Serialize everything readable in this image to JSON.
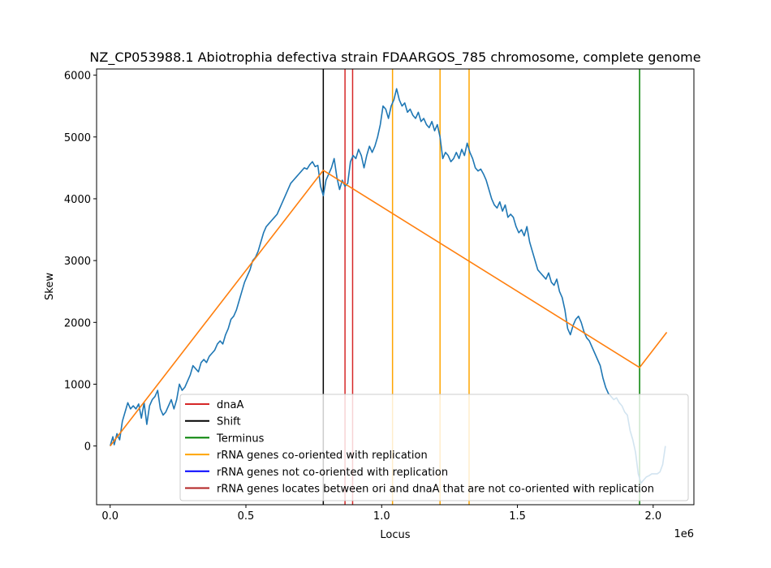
{
  "chart_data": {
    "type": "line",
    "title": "NZ_CP053988.1 Abiotrophia defectiva strain FDAARGOS_785 chromosome, complete genome",
    "xlabel": "Locus",
    "ylabel": "Skew",
    "x_offset_label": "1e6",
    "xlim": [
      -50000,
      2150000
    ],
    "ylim": [
      -950,
      6100
    ],
    "x_ticks": [
      0,
      500000,
      1000000,
      1500000,
      2000000
    ],
    "x_tick_labels": [
      "0.0",
      "0.5",
      "1.0",
      "1.5",
      "2.0"
    ],
    "y_ticks": [
      0,
      1000,
      2000,
      3000,
      4000,
      5000,
      6000
    ],
    "y_tick_labels": [
      "0",
      "1000",
      "2000",
      "3000",
      "4000",
      "5000",
      "6000"
    ],
    "grid": false,
    "legend_position": "lower right",
    "colors": {
      "skew": "#1f77b4",
      "model": "#ff7f0e",
      "dnaA": "#d62728",
      "shift": "#000000",
      "terminus": "#008000",
      "rrna_co": "#ffa500",
      "rrna_not_co": "#0000ff",
      "rrna_between": "#b22222"
    },
    "series": [
      {
        "name": "skew",
        "x": [
          0,
          10000,
          15000,
          25000,
          35000,
          45000,
          55000,
          65000,
          75000,
          85000,
          95000,
          105000,
          115000,
          125000,
          135000,
          145000,
          155000,
          165000,
          175000,
          185000,
          195000,
          205000,
          215000,
          225000,
          235000,
          245000,
          255000,
          265000,
          275000,
          285000,
          295000,
          305000,
          315000,
          325000,
          335000,
          345000,
          355000,
          365000,
          375000,
          385000,
          395000,
          405000,
          415000,
          425000,
          435000,
          445000,
          455000,
          465000,
          475000,
          485000,
          495000,
          505000,
          515000,
          525000,
          535000,
          545000,
          555000,
          565000,
          575000,
          585000,
          595000,
          605000,
          615000,
          625000,
          635000,
          645000,
          655000,
          665000,
          675000,
          685000,
          695000,
          705000,
          715000,
          725000,
          735000,
          745000,
          755000,
          765000,
          775000,
          785000,
          795000,
          805000,
          815000,
          825000,
          835000,
          845000,
          855000,
          865000,
          875000,
          885000,
          895000,
          905000,
          915000,
          925000,
          935000,
          945000,
          955000,
          965000,
          975000,
          985000,
          995000,
          1005000,
          1015000,
          1025000,
          1035000,
          1045000,
          1055000,
          1065000,
          1075000,
          1085000,
          1095000,
          1105000,
          1115000,
          1125000,
          1135000,
          1145000,
          1155000,
          1165000,
          1175000,
          1185000,
          1195000,
          1205000,
          1215000,
          1225000,
          1235000,
          1245000,
          1255000,
          1265000,
          1275000,
          1285000,
          1295000,
          1305000,
          1315000,
          1325000,
          1335000,
          1345000,
          1355000,
          1365000,
          1375000,
          1385000,
          1395000,
          1405000,
          1415000,
          1425000,
          1435000,
          1445000,
          1455000,
          1465000,
          1475000,
          1485000,
          1495000,
          1505000,
          1515000,
          1525000,
          1535000,
          1545000,
          1555000,
          1565000,
          1575000,
          1585000,
          1595000,
          1605000,
          1615000,
          1625000,
          1635000,
          1645000,
          1655000,
          1665000,
          1675000,
          1685000,
          1695000,
          1705000,
          1715000,
          1725000,
          1735000,
          1745000,
          1755000,
          1765000,
          1775000,
          1785000,
          1795000,
          1805000,
          1815000,
          1825000,
          1835000,
          1845000,
          1855000,
          1865000,
          1875000,
          1885000,
          1895000,
          1905000,
          1915000,
          1925000,
          1935000,
          1945000,
          1955000,
          1965000,
          1975000,
          1985000,
          1995000,
          2005000,
          2015000,
          2025000,
          2035000,
          2045000
        ],
        "y": [
          0,
          150,
          20,
          200,
          100,
          400,
          550,
          700,
          600,
          650,
          600,
          680,
          450,
          700,
          350,
          650,
          750,
          800,
          900,
          600,
          500,
          550,
          650,
          750,
          600,
          750,
          1000,
          900,
          950,
          1050,
          1150,
          1300,
          1250,
          1200,
          1350,
          1400,
          1350,
          1450,
          1500,
          1550,
          1650,
          1700,
          1650,
          1800,
          1900,
          2050,
          2100,
          2200,
          2350,
          2500,
          2650,
          2750,
          2850,
          3000,
          3050,
          3150,
          3300,
          3450,
          3550,
          3600,
          3650,
          3700,
          3750,
          3850,
          3950,
          4050,
          4150,
          4250,
          4300,
          4350,
          4400,
          4450,
          4500,
          4480,
          4550,
          4600,
          4520,
          4540,
          4200,
          4050,
          4300,
          4400,
          4500,
          4650,
          4350,
          4150,
          4300,
          4200,
          4250,
          4600,
          4700,
          4650,
          4800,
          4700,
          4500,
          4700,
          4850,
          4750,
          4850,
          5000,
          5200,
          5500,
          5450,
          5300,
          5500,
          5600,
          5780,
          5600,
          5500,
          5550,
          5400,
          5450,
          5350,
          5300,
          5400,
          5250,
          5300,
          5200,
          5150,
          5250,
          5100,
          5200,
          5000,
          4650,
          4750,
          4700,
          4600,
          4650,
          4750,
          4650,
          4800,
          4700,
          4900,
          4750,
          4650,
          4500,
          4450,
          4480,
          4400,
          4300,
          4150,
          4000,
          3900,
          3850,
          3950,
          3800,
          3900,
          3700,
          3750,
          3700,
          3550,
          3450,
          3500,
          3400,
          3550,
          3300,
          3150,
          3000,
          2850,
          2800,
          2750,
          2700,
          2800,
          2650,
          2600,
          2700,
          2500,
          2400,
          2200,
          1900,
          1800,
          1950,
          2050,
          2100,
          2000,
          1850,
          1750,
          1700,
          1600,
          1500,
          1400,
          1300,
          1100,
          950,
          850,
          800,
          750,
          780,
          700,
          650,
          550,
          500,
          250,
          100,
          -100,
          -450,
          -600,
          -550,
          -500,
          -480,
          -450,
          -450,
          -450,
          -420,
          -300,
          0
        ]
      },
      {
        "name": "model",
        "x": [
          0,
          785000,
          1950000,
          2050000
        ],
        "y": [
          0,
          4460,
          1270,
          1840
        ]
      }
    ],
    "vlines": [
      {
        "name": "dnaA",
        "x": 865000,
        "color": "#d62728"
      },
      {
        "name": "dnaA",
        "x": 893000,
        "color": "#d62728"
      },
      {
        "name": "Shift",
        "x": 785000,
        "color": "#000000"
      },
      {
        "name": "Terminus",
        "x": 1950000,
        "color": "#008000"
      },
      {
        "name": "rRNA genes co-oriented with replication",
        "x": 1040000,
        "color": "#ffa500"
      },
      {
        "name": "rRNA genes co-oriented with replication",
        "x": 1215000,
        "color": "#ffa500"
      },
      {
        "name": "rRNA genes co-oriented with replication",
        "x": 1322000,
        "color": "#ffa500"
      }
    ],
    "legend": [
      {
        "label": "dnaA",
        "color": "#d62728"
      },
      {
        "label": "Shift",
        "color": "#000000"
      },
      {
        "label": "Terminus",
        "color": "#008000"
      },
      {
        "label": "rRNA genes co-oriented with replication",
        "color": "#ffa500"
      },
      {
        "label": "rRNA genes not co-oriented with replication",
        "color": "#0000ff"
      },
      {
        "label": "rRNA genes locates between ori and dnaA that are not co-oriented with replication",
        "color": "#b22222"
      }
    ]
  }
}
